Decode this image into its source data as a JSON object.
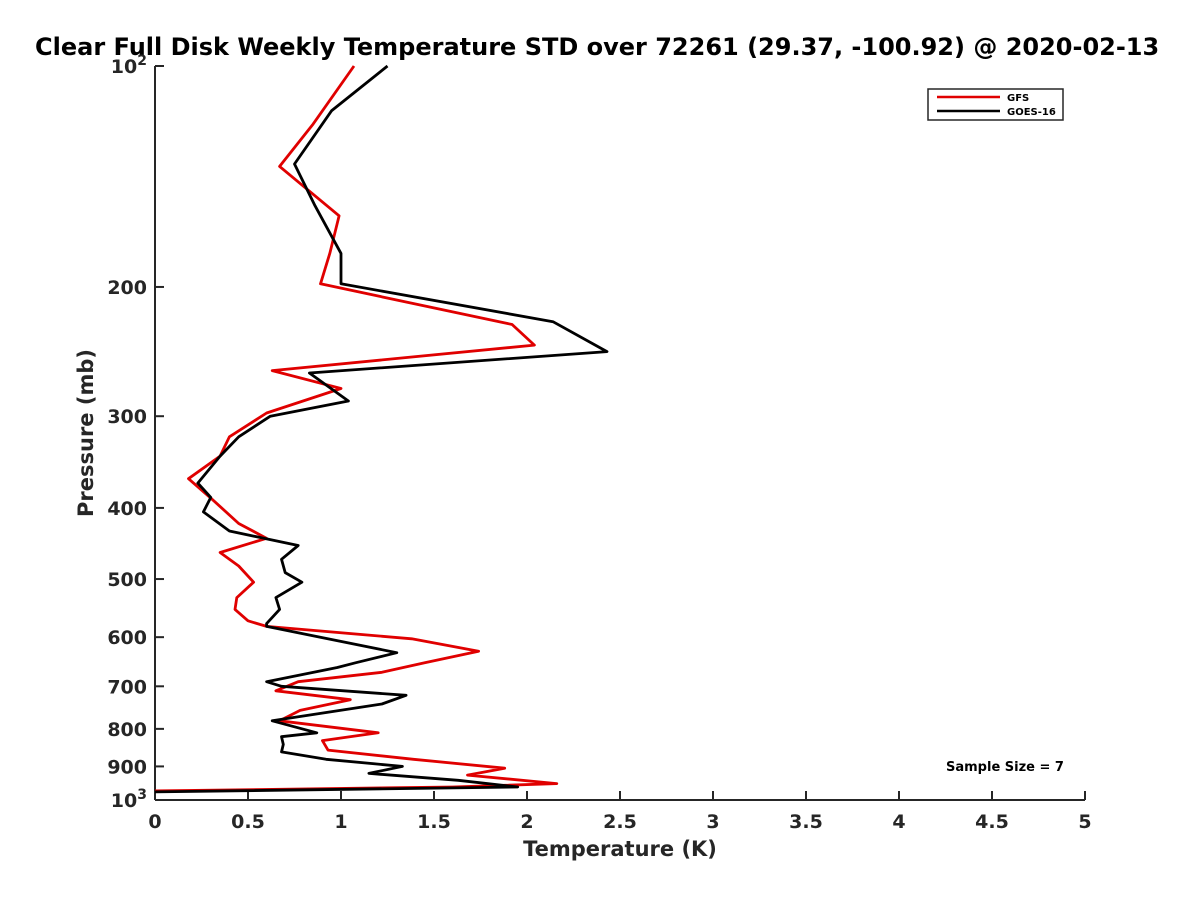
{
  "chart_data": {
    "type": "line",
    "title": "Clear Full Disk Weekly Temperature STD over 72261 (29.37, -100.92) @ 2020-02-13",
    "xlabel": "Temperature (K)",
    "ylabel": "Pressure (mb)",
    "xlim": [
      0,
      5
    ],
    "ylim": [
      100,
      1000
    ],
    "y_scale": "log",
    "y_reversed": true,
    "grid": false,
    "legend_position": "top-right",
    "x_ticks": [
      "0",
      "0.5",
      "1",
      "1.5",
      "2",
      "2.5",
      "3",
      "3.5",
      "4",
      "4.5",
      "5"
    ],
    "y_ticks": [
      {
        "value": 100,
        "base": "10",
        "exp": "2"
      },
      {
        "value": 200,
        "label": "200"
      },
      {
        "value": 300,
        "label": "300"
      },
      {
        "value": 400,
        "label": "400"
      },
      {
        "value": 500,
        "label": "500"
      },
      {
        "value": 600,
        "label": "600"
      },
      {
        "value": 700,
        "label": "700"
      },
      {
        "value": 800,
        "label": "800"
      },
      {
        "value": 900,
        "label": "900"
      },
      {
        "value": 1000,
        "base": "10",
        "exp": "3"
      }
    ],
    "annotation": "Sample Size = 7",
    "series": [
      {
        "name": "GFS",
        "color": "#e00000",
        "points": [
          [
            1.07,
            100
          ],
          [
            0.85,
            120
          ],
          [
            0.67,
            137
          ],
          [
            0.99,
            160
          ],
          [
            0.94,
            180
          ],
          [
            0.89,
            198
          ],
          [
            1.92,
            225
          ],
          [
            2.04,
            240
          ],
          [
            0.63,
            260
          ],
          [
            1.0,
            275
          ],
          [
            0.6,
            297
          ],
          [
            0.4,
            320
          ],
          [
            0.35,
            340
          ],
          [
            0.18,
            365
          ],
          [
            0.31,
            390
          ],
          [
            0.45,
            420
          ],
          [
            0.6,
            440
          ],
          [
            0.35,
            460
          ],
          [
            0.45,
            480
          ],
          [
            0.53,
            505
          ],
          [
            0.44,
            530
          ],
          [
            0.43,
            550
          ],
          [
            0.5,
            570
          ],
          [
            0.6,
            580
          ],
          [
            1.38,
            603
          ],
          [
            1.74,
            627
          ],
          [
            1.45,
            650
          ],
          [
            1.22,
            670
          ],
          [
            0.77,
            690
          ],
          [
            0.65,
            710
          ],
          [
            1.05,
            730
          ],
          [
            0.78,
            755
          ],
          [
            0.67,
            780
          ],
          [
            1.2,
            810
          ],
          [
            0.9,
            830
          ],
          [
            0.93,
            855
          ],
          [
            1.39,
            880
          ],
          [
            1.88,
            905
          ],
          [
            1.68,
            925
          ],
          [
            2.16,
            950
          ],
          [
            1.6,
            960
          ],
          [
            0.0,
            972
          ]
        ]
      },
      {
        "name": "GOES-16",
        "color": "#000000",
        "points": [
          [
            1.25,
            100
          ],
          [
            0.95,
            115
          ],
          [
            0.75,
            136
          ],
          [
            0.86,
            155
          ],
          [
            1.0,
            180
          ],
          [
            1.0,
            198
          ],
          [
            2.14,
            223
          ],
          [
            2.43,
            245
          ],
          [
            0.83,
            262
          ],
          [
            1.04,
            286
          ],
          [
            0.62,
            300
          ],
          [
            0.45,
            320
          ],
          [
            0.35,
            340
          ],
          [
            0.23,
            370
          ],
          [
            0.3,
            387
          ],
          [
            0.26,
            405
          ],
          [
            0.4,
            430
          ],
          [
            0.77,
            450
          ],
          [
            0.68,
            470
          ],
          [
            0.7,
            490
          ],
          [
            0.79,
            505
          ],
          [
            0.65,
            530
          ],
          [
            0.67,
            550
          ],
          [
            0.6,
            575
          ],
          [
            0.6,
            580
          ],
          [
            1.3,
            630
          ],
          [
            1.08,
            650
          ],
          [
            0.98,
            660
          ],
          [
            0.6,
            690
          ],
          [
            0.68,
            700
          ],
          [
            1.35,
            720
          ],
          [
            1.22,
            740
          ],
          [
            0.63,
            780
          ],
          [
            0.87,
            810
          ],
          [
            0.68,
            820
          ],
          [
            0.69,
            840
          ],
          [
            0.68,
            860
          ],
          [
            0.92,
            880
          ],
          [
            1.33,
            900
          ],
          [
            1.15,
            920
          ],
          [
            1.63,
            940
          ],
          [
            1.95,
            960
          ],
          [
            0.0,
            975
          ]
        ]
      }
    ]
  }
}
